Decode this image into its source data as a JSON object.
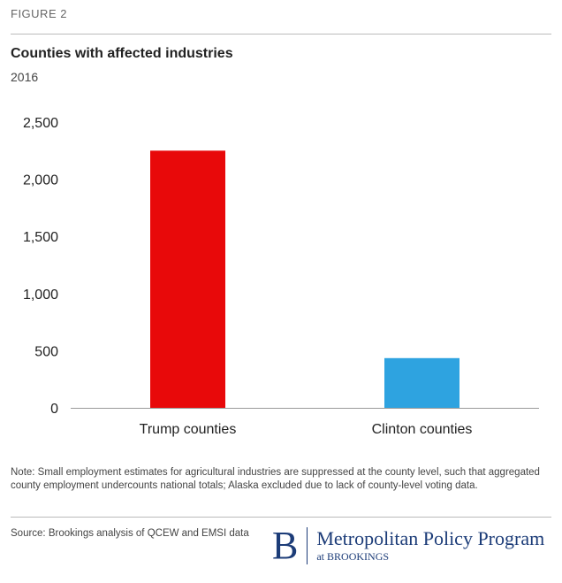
{
  "figure_label": "FIGURE 2",
  "chart_data": {
    "type": "bar",
    "title": "Counties with affected industries",
    "subtitle": "2016",
    "categories": [
      "Trump counties",
      "Clinton counties"
    ],
    "values": [
      2250,
      435
    ],
    "colors": [
      "#e8090a",
      "#2ea3e0"
    ],
    "ylim": [
      0,
      2500
    ],
    "yticks": [
      0,
      500,
      1000,
      1500,
      2000,
      2500
    ],
    "ytick_labels": [
      "0",
      "500",
      "1,000",
      "1,500",
      "2,000",
      "2,500"
    ],
    "xlabel": "",
    "ylabel": "",
    "grid": false
  },
  "note": "Note: Small employment estimates for agricultural industries are suppressed at the county level, such that aggregated county employment undercounts national totals; Alaska excluded due to lack of county-level voting data.",
  "source": "Source: Brookings analysis of QCEW and EMSI data",
  "logo": {
    "letter": "B",
    "main": "Metropolitan Policy Program",
    "sub": "at BROOKINGS"
  }
}
